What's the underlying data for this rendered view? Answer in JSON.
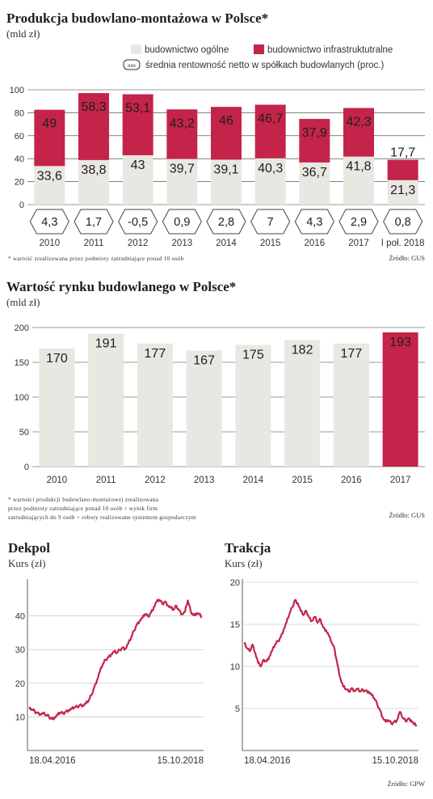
{
  "colors": {
    "general": "#e9e7e1",
    "infra": "#c4244a",
    "grid": "#333333",
    "line": "#c4244a",
    "highlight": "#c4244a"
  },
  "chart1": {
    "title": "Produkcja budowlano-montażowa w Polsce*",
    "unit": "(mld zł)",
    "legend": {
      "general": "budownictwo ogólne",
      "infra": "budownictwo infrastruktutralne",
      "profit_symbol": "xxx",
      "profit": "średnia rentowność netto w spółkach budowlanych (proc.)"
    },
    "footnote": "* wartość zrealizowana przez podmioty zatrudniające ponad 10 osób",
    "source": "Źródło: GUS",
    "chart_data": {
      "type": "bar",
      "stacked": true,
      "categories": [
        "2010",
        "2011",
        "2012",
        "2013",
        "2014",
        "2015",
        "2016",
        "2017",
        "I poł. 2018"
      ],
      "series": [
        {
          "name": "budownictwo ogólne",
          "values": [
            33.6,
            38.8,
            43,
            39.7,
            39.1,
            40.3,
            36.7,
            41.8,
            21.3
          ],
          "labels": [
            "33,6",
            "38,8",
            "43",
            "39,7",
            "39,1",
            "40,3",
            "36,7",
            "41,8",
            "21,3"
          ]
        },
        {
          "name": "budownictwo infrastruktutralne",
          "values": [
            49,
            58.3,
            53.1,
            43.2,
            46,
            46.7,
            37.9,
            42.3,
            17.7
          ],
          "labels": [
            "49",
            "58,3",
            "53,1",
            "43,2",
            "46",
            "46,7",
            "37,9",
            "42,3",
            "17,7"
          ]
        }
      ],
      "profitability": {
        "name": "średnia rentowność netto w spółkach budowlanych (proc.)",
        "values": [
          4.3,
          1.7,
          -0.5,
          0.9,
          2.8,
          7,
          4.3,
          2.9,
          0.8
        ],
        "labels": [
          "4,3",
          "1,7",
          "-0,5",
          "0,9",
          "2,8",
          "7",
          "4,3",
          "2,9",
          "0,8"
        ]
      },
      "ylim": [
        0,
        100
      ],
      "yticks": [
        "0",
        "20",
        "40",
        "60",
        "80",
        "100"
      ],
      "grid": true
    }
  },
  "chart2": {
    "title": "Wartość rynku budowlanego w Polsce*",
    "unit": "(mld zł)",
    "footnote": [
      "* wartości produkcji budowlano-montażowej zrealizowana",
      "przez podmioty zatrudniające ponad 10 osób + wynik firm",
      "zatrudniających do 9 osób + roboty realizowane systemem gospodarczym"
    ],
    "source": "Źródło: GUS",
    "chart_data": {
      "type": "bar",
      "categories": [
        "2010",
        "2011",
        "2012",
        "2013",
        "2014",
        "2015",
        "2016",
        "2017"
      ],
      "values": [
        170,
        191,
        177,
        167,
        175,
        182,
        177,
        193
      ],
      "highlight_index": 7,
      "ylim": [
        0,
        200
      ],
      "yticks": [
        "0",
        "50",
        "100",
        "150",
        "200"
      ],
      "grid": true
    }
  },
  "chart3": {
    "title": "Dekpol",
    "subtitle": "Kurs (zł)",
    "chart_data": {
      "type": "line",
      "x_start": "18.04.2016",
      "x_end": "15.10.2018",
      "ylim": [
        0,
        50
      ],
      "yticks": [
        "10",
        "20",
        "30",
        "40"
      ],
      "y": [
        12.4,
        12.2,
        11.6,
        11.2,
        10.8,
        11.0,
        10.5,
        10.1,
        9.4,
        9.8,
        10.5,
        11.3,
        11.0,
        11.6,
        12.0,
        12.3,
        12.8,
        13.0,
        13.6,
        13.4,
        13.9,
        14.8,
        16.5,
        18.8,
        21.0,
        23.5,
        25.6,
        27.0,
        27.8,
        28.6,
        29.4,
        29.0,
        29.9,
        30.6,
        30.2,
        31.8,
        33.5,
        35.6,
        37.4,
        38.6,
        39.4,
        40.6,
        39.8,
        41.0,
        42.6,
        44.2,
        44.8,
        43.6,
        44.3,
        43.1,
        42.4,
        41.8,
        43.0,
        41.6,
        40.5,
        41.2,
        44.6,
        41.5,
        40.2,
        40.8,
        40.5,
        39.6
      ]
    }
  },
  "chart4": {
    "title": "Trakcja",
    "subtitle": "Kurs (zł)",
    "source": "Źródło: GPW",
    "chart_data": {
      "type": "line",
      "x_start": "18.04.2016",
      "x_end": "15.10.2018",
      "ylim": [
        0,
        20
      ],
      "yticks": [
        "5",
        "10",
        "15",
        "20"
      ],
      "y": [
        12.8,
        12.2,
        11.8,
        12.6,
        11.6,
        10.4,
        10.0,
        10.8,
        10.6,
        11.2,
        11.9,
        12.6,
        13.0,
        13.5,
        14.4,
        15.2,
        16.2,
        17.0,
        17.9,
        17.5,
        16.6,
        16.1,
        16.6,
        15.8,
        15.4,
        15.9,
        15.2,
        15.6,
        14.6,
        14.3,
        13.6,
        12.8,
        12.0,
        10.2,
        8.6,
        7.6,
        7.3,
        7.0,
        7.4,
        7.1,
        7.3,
        7.0,
        7.2,
        7.1,
        7.0,
        6.6,
        6.2,
        5.5,
        4.8,
        3.9,
        3.4,
        3.6,
        3.2,
        3.4,
        3.6,
        4.6,
        3.9,
        3.5,
        3.8,
        3.6,
        3.1,
        3.0
      ]
    }
  }
}
